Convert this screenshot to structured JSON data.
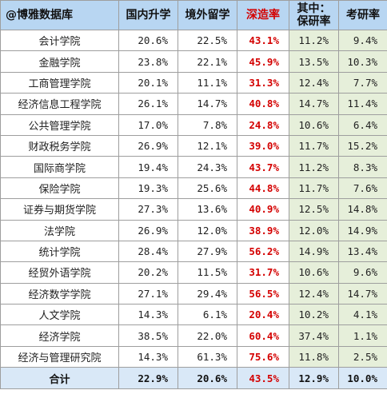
{
  "header": {
    "source": "@博雅数据库",
    "col_domestic": "国内升学",
    "col_abroad": "境外留学",
    "col_further": "深造率",
    "col_recommend_line1": "其中：",
    "col_recommend_line2": "保研率",
    "col_exam": "考研率"
  },
  "rows": [
    {
      "name": "会计学院",
      "domestic": "20.6%",
      "abroad": "22.5%",
      "further": "43.1%",
      "recommend": "11.2%",
      "exam": "9.4%"
    },
    {
      "name": "金融学院",
      "domestic": "23.8%",
      "abroad": "22.1%",
      "further": "45.9%",
      "recommend": "13.5%",
      "exam": "10.3%"
    },
    {
      "name": "工商管理学院",
      "domestic": "20.1%",
      "abroad": "11.1%",
      "further": "31.3%",
      "recommend": "12.4%",
      "exam": "7.7%"
    },
    {
      "name": "经济信息工程学院",
      "domestic": "26.1%",
      "abroad": "14.7%",
      "further": "40.8%",
      "recommend": "14.7%",
      "exam": "11.4%"
    },
    {
      "name": "公共管理学院",
      "domestic": "17.0%",
      "abroad": "7.8%",
      "further": "24.8%",
      "recommend": "10.6%",
      "exam": "6.4%"
    },
    {
      "name": "财政税务学院",
      "domestic": "26.9%",
      "abroad": "12.1%",
      "further": "39.0%",
      "recommend": "11.7%",
      "exam": "15.2%"
    },
    {
      "name": "国际商学院",
      "domestic": "19.4%",
      "abroad": "24.3%",
      "further": "43.7%",
      "recommend": "11.2%",
      "exam": "8.3%"
    },
    {
      "name": "保险学院",
      "domestic": "19.3%",
      "abroad": "25.6%",
      "further": "44.8%",
      "recommend": "11.7%",
      "exam": "7.6%"
    },
    {
      "name": "证券与期货学院",
      "domestic": "27.3%",
      "abroad": "13.6%",
      "further": "40.9%",
      "recommend": "12.5%",
      "exam": "14.8%"
    },
    {
      "name": "法学院",
      "domestic": "26.9%",
      "abroad": "12.0%",
      "further": "38.9%",
      "recommend": "12.0%",
      "exam": "14.9%"
    },
    {
      "name": "统计学院",
      "domestic": "28.4%",
      "abroad": "27.9%",
      "further": "56.2%",
      "recommend": "14.9%",
      "exam": "13.4%"
    },
    {
      "name": "经贸外语学院",
      "domestic": "20.2%",
      "abroad": "11.5%",
      "further": "31.7%",
      "recommend": "10.6%",
      "exam": "9.6%"
    },
    {
      "name": "经济数学学院",
      "domestic": "27.1%",
      "abroad": "29.4%",
      "further": "56.5%",
      "recommend": "12.4%",
      "exam": "14.7%"
    },
    {
      "name": "人文学院",
      "domestic": "14.3%",
      "abroad": "6.1%",
      "further": "20.4%",
      "recommend": "10.2%",
      "exam": "4.1%"
    },
    {
      "name": "经济学院",
      "domestic": "38.5%",
      "abroad": "22.0%",
      "further": "60.4%",
      "recommend": "37.4%",
      "exam": "1.1%"
    },
    {
      "name": "经济与管理研究院",
      "domestic": "14.3%",
      "abroad": "61.3%",
      "further": "75.6%",
      "recommend": "11.8%",
      "exam": "2.5%"
    }
  ],
  "total": {
    "name": "合计",
    "domestic": "22.9%",
    "abroad": "20.6%",
    "further": "43.5%",
    "recommend": "12.9%",
    "exam": "10.0%"
  },
  "colors": {
    "header_bg": "#b8d6f2",
    "highlight_red": "#d40000",
    "green_cell_bg": "#e6efda",
    "footer_bg": "#d9e8f7"
  }
}
